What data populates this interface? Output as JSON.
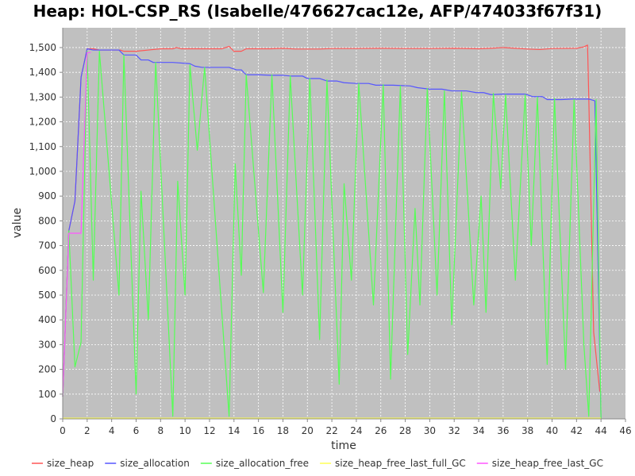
{
  "chart_data": {
    "type": "line",
    "title": "Heap: HOL-CSP_RS (Isabelle/476627cac12e, AFP/474033f67f31)",
    "xlabel": "time",
    "ylabel": "value",
    "xlim": [
      0,
      46
    ],
    "ylim": [
      0,
      1580
    ],
    "x_ticks": [
      0,
      2,
      4,
      6,
      8,
      10,
      12,
      14,
      16,
      18,
      20,
      22,
      24,
      26,
      28,
      30,
      32,
      34,
      36,
      38,
      40,
      42,
      44,
      46
    ],
    "y_ticks": [
      {
        "value": 0,
        "label": "0"
      },
      {
        "value": 100,
        "label": "100"
      },
      {
        "value": 200,
        "label": "200"
      },
      {
        "value": 300,
        "label": "300"
      },
      {
        "value": 400,
        "label": "400"
      },
      {
        "value": 500,
        "label": "500"
      },
      {
        "value": 600,
        "label": "600"
      },
      {
        "value": 700,
        "label": "700"
      },
      {
        "value": 800,
        "label": "800"
      },
      {
        "value": 900,
        "label": "900"
      },
      {
        "value": 1000,
        "label": "1,000"
      },
      {
        "value": 1100,
        "label": "1,100"
      },
      {
        "value": 1200,
        "label": "1,200"
      },
      {
        "value": 1300,
        "label": "1,300"
      },
      {
        "value": 1400,
        "label": "1,400"
      },
      {
        "value": 1500,
        "label": "1,500"
      }
    ],
    "grid": true,
    "legend_position": "bottom",
    "plot_background": "#c0c0c0",
    "series": [
      {
        "name": "size_heap",
        "color": "#ff5555",
        "points": [
          [
            0,
            90
          ],
          [
            0.5,
            760
          ],
          [
            1,
            880
          ],
          [
            1.5,
            1380
          ],
          [
            2,
            1495
          ],
          [
            2.5,
            1495
          ],
          [
            3,
            1490
          ],
          [
            4,
            1490
          ],
          [
            4.7,
            1490
          ],
          [
            5,
            1485
          ],
          [
            6,
            1485
          ],
          [
            7,
            1490
          ],
          [
            8,
            1495
          ],
          [
            9,
            1495
          ],
          [
            9.3,
            1500
          ],
          [
            9.7,
            1495
          ],
          [
            10,
            1495
          ],
          [
            12,
            1495
          ],
          [
            13,
            1495
          ],
          [
            13.6,
            1505
          ],
          [
            14,
            1485
          ],
          [
            14.6,
            1485
          ],
          [
            15,
            1495
          ],
          [
            17,
            1495
          ],
          [
            18,
            1497
          ],
          [
            19,
            1494
          ],
          [
            20,
            1494
          ],
          [
            21,
            1494
          ],
          [
            22,
            1496
          ],
          [
            24,
            1496
          ],
          [
            26,
            1497
          ],
          [
            28,
            1496
          ],
          [
            30,
            1496
          ],
          [
            32,
            1497
          ],
          [
            34,
            1495
          ],
          [
            35,
            1497
          ],
          [
            36,
            1500
          ],
          [
            37,
            1497
          ],
          [
            38,
            1494
          ],
          [
            39,
            1492
          ],
          [
            40,
            1496
          ],
          [
            42,
            1497
          ],
          [
            42.6,
            1503
          ],
          [
            42.9,
            1510
          ],
          [
            43,
            1300
          ],
          [
            43.4,
            350
          ],
          [
            43.9,
            110
          ]
        ]
      },
      {
        "name": "size_allocation",
        "color": "#5555ff",
        "points": [
          [
            0,
            90
          ],
          [
            0.5,
            760
          ],
          [
            1,
            880
          ],
          [
            1.5,
            1380
          ],
          [
            2,
            1495
          ],
          [
            2.5,
            1490
          ],
          [
            3,
            1490
          ],
          [
            4.6,
            1490
          ],
          [
            5,
            1470
          ],
          [
            6,
            1470
          ],
          [
            6.4,
            1450
          ],
          [
            7,
            1450
          ],
          [
            7.4,
            1440
          ],
          [
            9,
            1440
          ],
          [
            10.4,
            1435
          ],
          [
            10.8,
            1425
          ],
          [
            11.4,
            1420
          ],
          [
            12,
            1420
          ],
          [
            13.6,
            1420
          ],
          [
            14.2,
            1410
          ],
          [
            14.6,
            1410
          ],
          [
            15,
            1390
          ],
          [
            16,
            1390
          ],
          [
            17,
            1388
          ],
          [
            18,
            1388
          ],
          [
            18.6,
            1385
          ],
          [
            19.6,
            1385
          ],
          [
            20,
            1375
          ],
          [
            21,
            1375
          ],
          [
            21.6,
            1365
          ],
          [
            22.4,
            1365
          ],
          [
            23,
            1358
          ],
          [
            24,
            1355
          ],
          [
            25,
            1355
          ],
          [
            25.6,
            1348
          ],
          [
            27,
            1348
          ],
          [
            28.4,
            1345
          ],
          [
            29,
            1338
          ],
          [
            30,
            1332
          ],
          [
            31,
            1332
          ],
          [
            31.8,
            1325
          ],
          [
            33,
            1325
          ],
          [
            33.8,
            1318
          ],
          [
            34.4,
            1318
          ],
          [
            35,
            1310
          ],
          [
            36,
            1312
          ],
          [
            37,
            1312
          ],
          [
            37.8,
            1312
          ],
          [
            38.4,
            1302
          ],
          [
            39.2,
            1302
          ],
          [
            39.6,
            1290
          ],
          [
            40.8,
            1290
          ],
          [
            41.6,
            1292
          ],
          [
            42.4,
            1292
          ],
          [
            43,
            1292
          ],
          [
            43.5,
            1285
          ],
          [
            44,
            0
          ]
        ]
      },
      {
        "name": "size_allocation_free",
        "color": "#55ff55",
        "points": [
          [
            0,
            90
          ],
          [
            0.5,
            760
          ],
          [
            1,
            210
          ],
          [
            1.5,
            310
          ],
          [
            2,
            1485
          ],
          [
            2.5,
            560
          ],
          [
            3,
            1485
          ],
          [
            4.6,
            500
          ],
          [
            5,
            1470
          ],
          [
            6,
            100
          ],
          [
            6.4,
            920
          ],
          [
            7,
            400
          ],
          [
            7.6,
            1440
          ],
          [
            9,
            10
          ],
          [
            9.4,
            960
          ],
          [
            10,
            500
          ],
          [
            10.4,
            1430
          ],
          [
            11,
            1085
          ],
          [
            11.6,
            1420
          ],
          [
            13.6,
            10
          ],
          [
            14.1,
            1030
          ],
          [
            14.6,
            580
          ],
          [
            15,
            1390
          ],
          [
            16.4,
            510
          ],
          [
            17.1,
            1390
          ],
          [
            18,
            430
          ],
          [
            18.6,
            1385
          ],
          [
            19.6,
            500
          ],
          [
            20.2,
            1375
          ],
          [
            21,
            320
          ],
          [
            21.6,
            1370
          ],
          [
            22.6,
            140
          ],
          [
            23,
            950
          ],
          [
            23.6,
            560
          ],
          [
            24.2,
            1355
          ],
          [
            25.4,
            460
          ],
          [
            26.2,
            1350
          ],
          [
            26.8,
            160
          ],
          [
            27.6,
            1345
          ],
          [
            28.2,
            260
          ],
          [
            28.8,
            850
          ],
          [
            29.2,
            460
          ],
          [
            29.8,
            1335
          ],
          [
            30.6,
            500
          ],
          [
            31.2,
            1325
          ],
          [
            31.8,
            380
          ],
          [
            32.6,
            1320
          ],
          [
            33.6,
            460
          ],
          [
            34.2,
            900
          ],
          [
            34.6,
            430
          ],
          [
            35.2,
            1315
          ],
          [
            35.8,
            930
          ],
          [
            36.2,
            1310
          ],
          [
            37,
            560
          ],
          [
            37.8,
            1310
          ],
          [
            38.3,
            700
          ],
          [
            38.8,
            1300
          ],
          [
            39.6,
            220
          ],
          [
            40.2,
            1295
          ],
          [
            41.1,
            200
          ],
          [
            41.8,
            1290
          ],
          [
            42.6,
            300
          ],
          [
            43,
            10
          ],
          [
            43.6,
            1290
          ],
          [
            44,
            0
          ]
        ]
      },
      {
        "name": "size_heap_free_last_full_GC",
        "color": "#ffff55",
        "points": [
          [
            0,
            3
          ],
          [
            44,
            3
          ]
        ]
      },
      {
        "name": "size_heap_free_last_GC",
        "color": "#ff55ff",
        "points": [
          [
            0,
            90
          ],
          [
            0.5,
            750
          ],
          [
            1.5,
            750
          ],
          [
            2,
            1480
          ],
          [
            2.3,
            1480
          ]
        ]
      }
    ]
  }
}
